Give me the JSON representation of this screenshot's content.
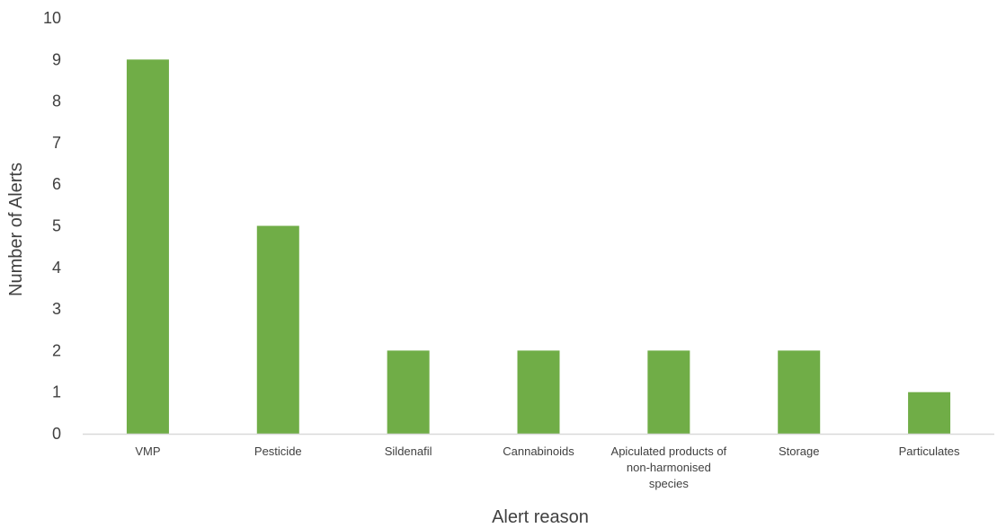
{
  "chart_data": {
    "type": "bar",
    "title": "",
    "xlabel": "Alert reason",
    "ylabel": "Number of Alerts",
    "ylim": [
      0,
      10
    ],
    "yticks": [
      0,
      1,
      2,
      3,
      4,
      5,
      6,
      7,
      8,
      9,
      10
    ],
    "grid": false,
    "legend": "none",
    "bar_color": "#70ad47",
    "axis_color": "#d9d9d9",
    "text_color": "#404040",
    "categories": [
      [
        "VMP"
      ],
      [
        "Pesticide"
      ],
      [
        "Sildenafil"
      ],
      [
        "Cannabinoids"
      ],
      [
        "Apiculated products of",
        "non-harmonised",
        "species"
      ],
      [
        "Storage"
      ],
      [
        "Particulates"
      ]
    ],
    "values": [
      9,
      5,
      2,
      2,
      2,
      2,
      1
    ]
  }
}
